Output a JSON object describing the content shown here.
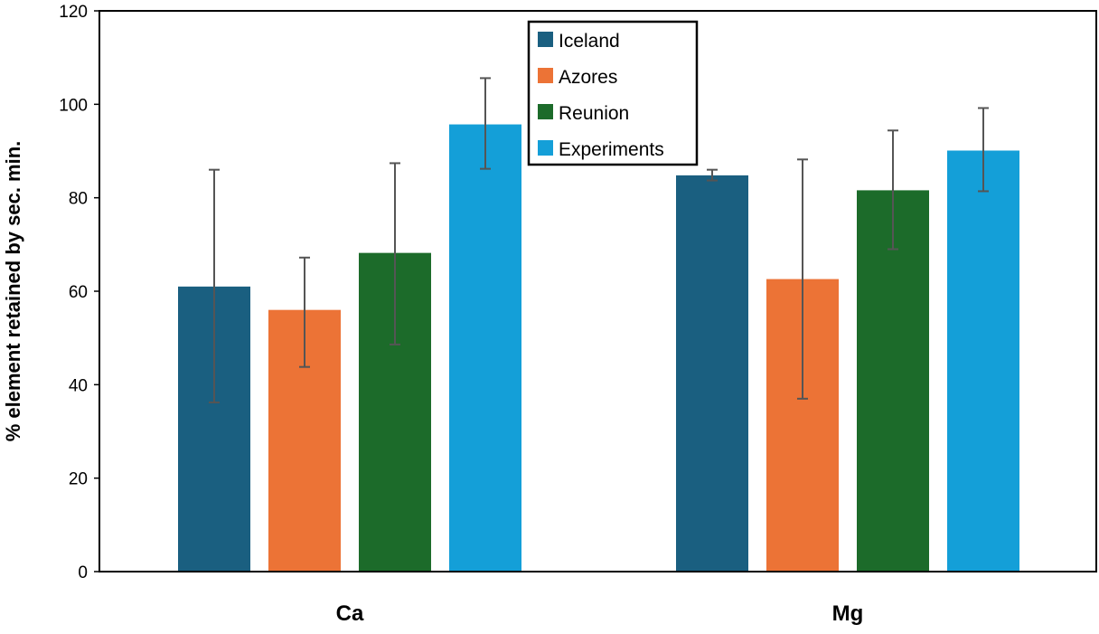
{
  "chart_data": {
    "type": "bar",
    "title": "",
    "xlabel": "",
    "ylabel": "% element retained by sec. min.",
    "ylim": [
      0,
      120
    ],
    "yticks": [
      0,
      20,
      40,
      60,
      80,
      100,
      120
    ],
    "categories": [
      "Ca",
      "Mg"
    ],
    "legend_position": "top-center",
    "series": [
      {
        "name": "Iceland",
        "color": "#1a5f80",
        "values": [
          61.0,
          84.8
        ],
        "err_low": [
          36.2,
          83.7
        ],
        "err_high": [
          86.0,
          86.0
        ]
      },
      {
        "name": "Azores",
        "color": "#ec7336",
        "values": [
          56.0,
          62.6
        ],
        "err_low": [
          43.8,
          37.0
        ],
        "err_high": [
          67.2,
          88.2
        ]
      },
      {
        "name": "Reunion",
        "color": "#1c6b2a",
        "values": [
          68.2,
          81.6
        ],
        "err_low": [
          48.6,
          69.0
        ],
        "err_high": [
          87.4,
          94.4
        ]
      },
      {
        "name": "Experiments",
        "color": "#149fd8",
        "values": [
          95.7,
          90.1
        ],
        "err_low": [
          86.2,
          81.4
        ],
        "err_high": [
          105.6,
          99.2
        ]
      }
    ]
  }
}
